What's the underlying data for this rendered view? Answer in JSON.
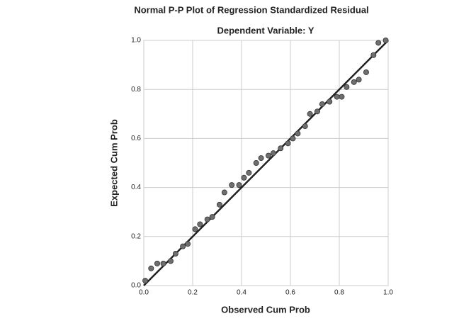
{
  "chart_data": {
    "type": "scatter",
    "title": "Normal P-P Plot of Regression Standardized Residual",
    "subtitle": "Dependent Variable: Y",
    "x_label": "Observed Cum Prob",
    "y_label": "Expected Cum Prob",
    "xlim": [
      0,
      1
    ],
    "ylim": [
      0,
      1
    ],
    "xticks": [
      {
        "value": 0,
        "label": "0.0"
      },
      {
        "value": 0.2,
        "label": "0.2"
      },
      {
        "value": 0.4,
        "label": "0.4"
      },
      {
        "value": 0.6,
        "label": "0.6"
      },
      {
        "value": 0.8,
        "label": "0.8"
      },
      {
        "value": 1,
        "label": "1.0"
      }
    ],
    "yticks": [
      {
        "value": 0,
        "label": "0.0"
      },
      {
        "value": 0.2,
        "label": "0.2"
      },
      {
        "value": 0.4,
        "label": "0.4"
      },
      {
        "value": 0.6,
        "label": "0.6"
      },
      {
        "value": 0.8,
        "label": "0.8"
      },
      {
        "value": 1,
        "label": "1.0"
      }
    ],
    "grid": true,
    "color": "#6e6e6e",
    "line_color": "#222222",
    "x": [
      0.006,
      0.03,
      0.055,
      0.08,
      0.11,
      0.13,
      0.16,
      0.18,
      0.21,
      0.23,
      0.26,
      0.28,
      0.31,
      0.33,
      0.36,
      0.39,
      0.41,
      0.43,
      0.46,
      0.48,
      0.51,
      0.53,
      0.56,
      0.59,
      0.61,
      0.63,
      0.66,
      0.68,
      0.71,
      0.73,
      0.76,
      0.79,
      0.81,
      0.83,
      0.86,
      0.88,
      0.91,
      0.94,
      0.96,
      0.99
    ],
    "values": [
      0.02,
      0.07,
      0.09,
      0.09,
      0.1,
      0.13,
      0.16,
      0.17,
      0.23,
      0.25,
      0.27,
      0.28,
      0.33,
      0.38,
      0.41,
      0.41,
      0.44,
      0.46,
      0.5,
      0.52,
      0.53,
      0.54,
      0.56,
      0.58,
      0.6,
      0.62,
      0.65,
      0.7,
      0.71,
      0.74,
      0.75,
      0.77,
      0.77,
      0.81,
      0.83,
      0.84,
      0.87,
      0.94,
      0.99,
      1.0
    ]
  }
}
